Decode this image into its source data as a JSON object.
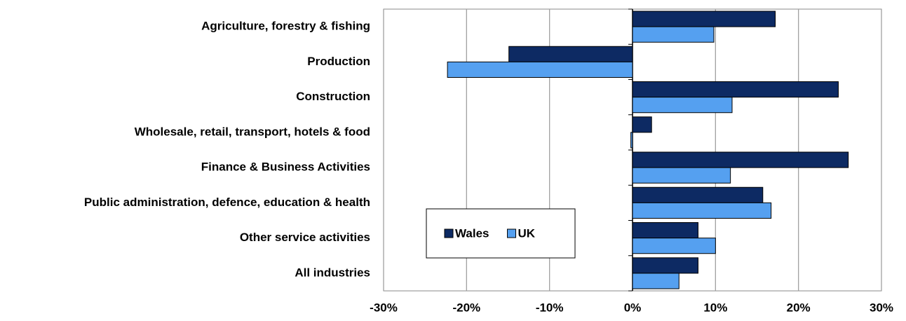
{
  "chart_data": {
    "type": "bar",
    "orientation": "horizontal",
    "categories": [
      "Agriculture, forestry & fishing",
      "Production",
      "Construction",
      "Wholesale, retail, transport, hotels & food",
      "Finance & Business Activities",
      "Public administration, defence, education & health",
      "Other service activities",
      "All industries"
    ],
    "series": [
      {
        "name": "Wales",
        "color": "#0d2a63",
        "values": [
          17.2,
          -14.9,
          24.8,
          2.3,
          26.0,
          15.7,
          7.9,
          7.9
        ]
      },
      {
        "name": "UK",
        "color": "#55a0f0",
        "values": [
          9.8,
          -22.3,
          12.0,
          -0.2,
          11.8,
          16.7,
          10.0,
          5.6
        ]
      }
    ],
    "xlim": [
      -30,
      30
    ],
    "xticks": [
      {
        "value": -30,
        "label": "-30%"
      },
      {
        "value": -20,
        "label": "-20%"
      },
      {
        "value": -10,
        "label": "-10%"
      },
      {
        "value": 0,
        "label": "0%"
      },
      {
        "value": 10,
        "label": "10%"
      },
      {
        "value": 20,
        "label": "20%"
      },
      {
        "value": 30,
        "label": "30%"
      }
    ],
    "grid": true,
    "legend_position": "lower left"
  }
}
